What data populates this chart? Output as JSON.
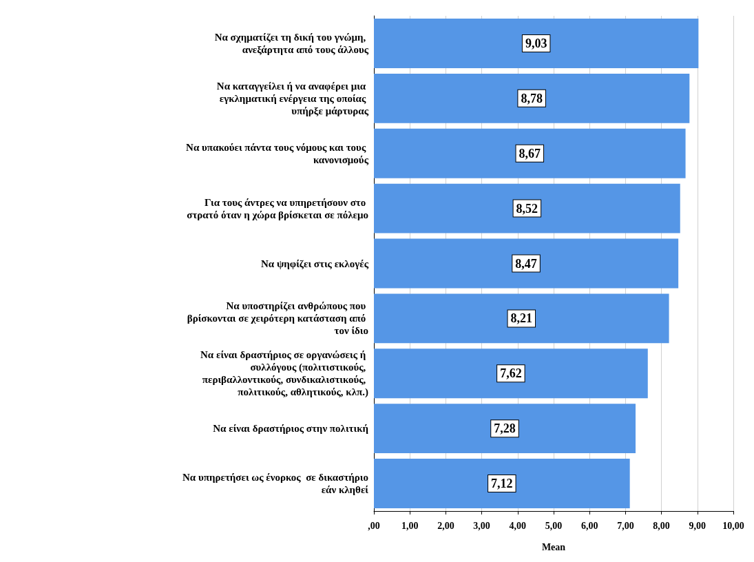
{
  "chart_data": {
    "type": "bar",
    "orientation": "horizontal",
    "xlabel": "Mean",
    "categories": [
      "Να σχηματίζει τη δική του γνώμη, ανεξάρτητα από τους άλλους",
      "Να καταγγείλει ή να αναφέρει μια εγκληματική ενέργεια της οποίας υπήρξε μάρτυρας",
      "Να υπακούει πάντα τους νόμους και τους κανονισμούς",
      "Για τους άντρες να υπηρετήσουν στο στρατό όταν η χώρα βρίσκεται σε πόλεμο",
      "Να ψηφίζει στις εκλογές",
      "Να υποστηρίζει ανθρώπους που βρίσκονται σε χειρότερη κατάσταση από τον ίδιο",
      "Να είναι δραστήριος σε οργανώσεις ή συλλόγους (πολιτιστικούς, περιβαλλοντικούς, συνδικαλιστικούς, πολιτικούς, αθλητικούς, κλπ.)",
      "Να είναι δραστήριος στην πολιτική",
      "Να υπηρετήσει ως ένορκος  σε δικαστήριο εάν κληθεί"
    ],
    "values": [
      9.03,
      8.78,
      8.67,
      8.52,
      8.47,
      8.21,
      7.62,
      7.28,
      7.12
    ],
    "value_labels": [
      "9,03",
      "8,78",
      "8,67",
      "8,52",
      "8,47",
      "8,21",
      "7,62",
      "7,28",
      "7,12"
    ],
    "color": "#5596e6",
    "xlim": [
      0,
      10
    ],
    "xticks": [
      {
        "value": 0,
        "label": ",00"
      },
      {
        "value": 1,
        "label": "1,00"
      },
      {
        "value": 2,
        "label": "2,00"
      },
      {
        "value": 3,
        "label": "3,00"
      },
      {
        "value": 4,
        "label": "4,00"
      },
      {
        "value": 5,
        "label": "5,00"
      },
      {
        "value": 6,
        "label": "6,00"
      },
      {
        "value": 7,
        "label": "7,00"
      },
      {
        "value": 8,
        "label": "8,00"
      },
      {
        "value": 9,
        "label": "9,00"
      },
      {
        "value": 10,
        "label": "10,00"
      }
    ],
    "grid": "x"
  }
}
